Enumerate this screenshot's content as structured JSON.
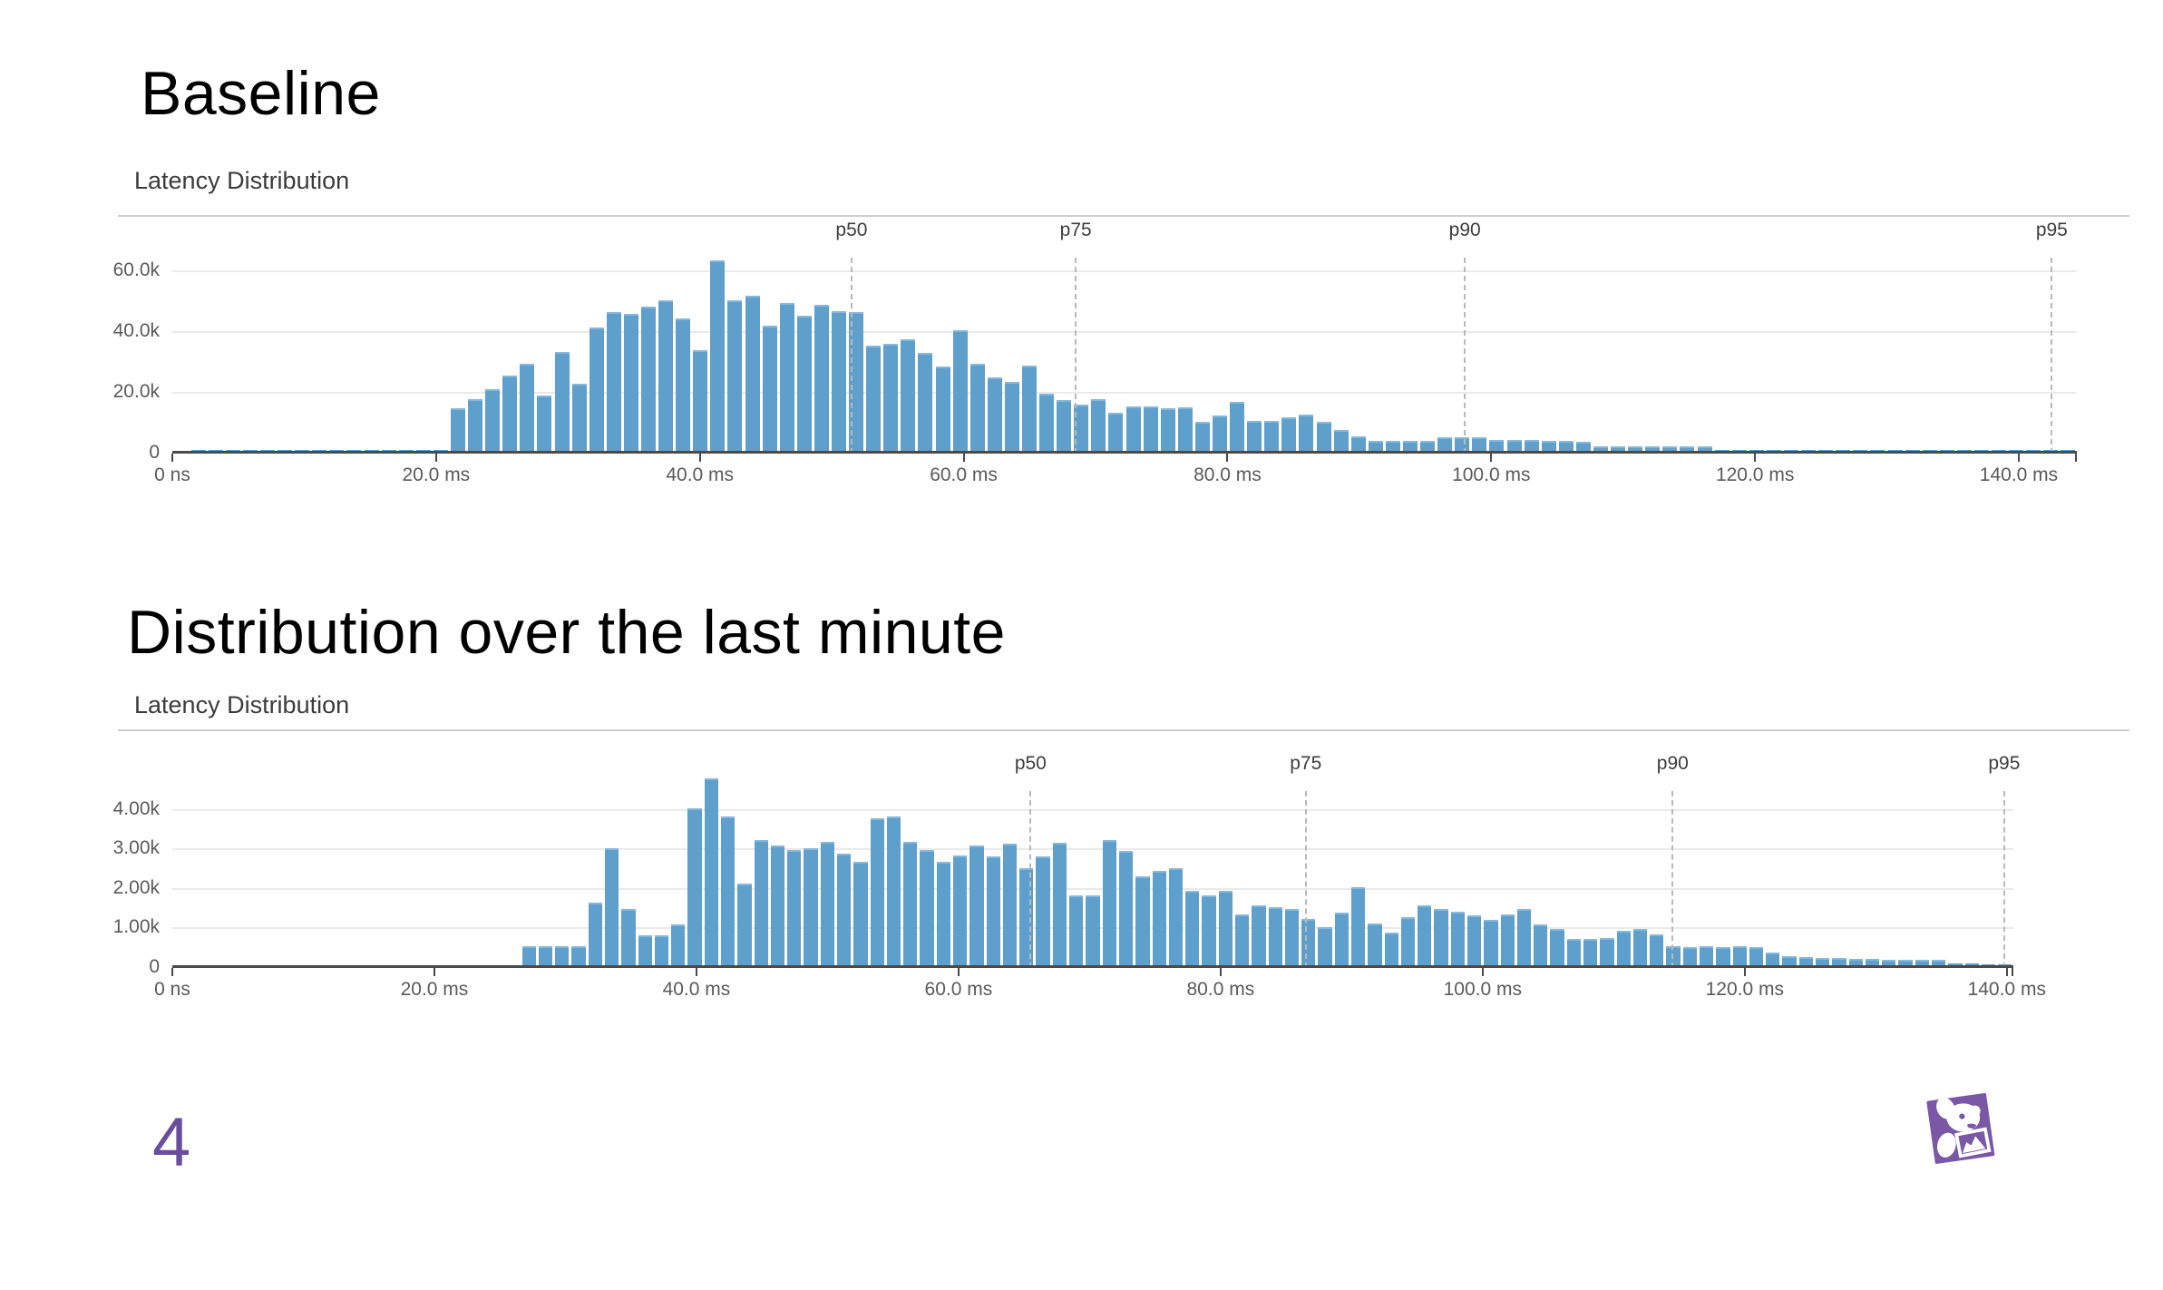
{
  "slide": {
    "page_number": "4"
  },
  "headlines": [
    "Baseline",
    "Distribution over the last minute"
  ],
  "colors": {
    "bar": "#5f9fcc",
    "bar_top_highlight": "#86b8db",
    "grid": "#eaeaea",
    "axis": "#4a4a4a",
    "tick_text": "#5a5a5a",
    "divider": "#cccccc",
    "percentile_line": "#b9b9b9",
    "percentile_text": "#3d3d3d",
    "accent_purple": "#6a4c9f",
    "logo_purple": "#7a58a6"
  },
  "logo": {
    "name": "datadog-logo"
  },
  "chart_data": [
    {
      "type": "bar",
      "title": "Latency Distribution",
      "y_unit": "k",
      "x_axis": {
        "range_ms": [
          0,
          144.4
        ],
        "ticks": [
          {
            "ms": 0,
            "label": "0 ns"
          },
          {
            "ms": 20,
            "label": "20.0 ms"
          },
          {
            "ms": 40,
            "label": "40.0 ms"
          },
          {
            "ms": 60,
            "label": "60.0 ms"
          },
          {
            "ms": 80,
            "label": "80.0 ms"
          },
          {
            "ms": 100,
            "label": "100.0 ms"
          },
          {
            "ms": 120,
            "label": "120.0 ms"
          },
          {
            "ms": 140,
            "label": "140.0 ms"
          }
        ]
      },
      "y_axis": {
        "max_k": 69.4,
        "ticks": [
          {
            "value": 0,
            "label": "0"
          },
          {
            "value": 20,
            "label": "20.0k"
          },
          {
            "value": 40,
            "label": "40.0k"
          },
          {
            "value": 60,
            "label": "60.0k"
          }
        ]
      },
      "percentiles": [
        {
          "label": "p50",
          "ms": 51.5
        },
        {
          "label": "p75",
          "ms": 68.5
        },
        {
          "label": "p90",
          "ms": 98.0
        },
        {
          "label": "p95",
          "ms": 142.5
        }
      ],
      "bin_width_ms": 1.31,
      "values_k": [
        0.6,
        1.1,
        1.2,
        1.1,
        1.2,
        1.2,
        1.1,
        1.2,
        1.2,
        1.1,
        1.2,
        1.2,
        1.1,
        1.2,
        1.2,
        1.2,
        14.5,
        17.5,
        20.5,
        25,
        29,
        18.5,
        33,
        22.5,
        41,
        46,
        45.5,
        48,
        50,
        44,
        33.5,
        63,
        50,
        51.5,
        41.5,
        49,
        45,
        48.5,
        46.5,
        46,
        35,
        35.5,
        37,
        32.5,
        28,
        40,
        29,
        24.5,
        23,
        28.5,
        19,
        17,
        15.5,
        17.5,
        13,
        15,
        15,
        14.5,
        14.7,
        9.8,
        12,
        16.5,
        10.3,
        10.3,
        11.5,
        12.3,
        9.8,
        7.2,
        5,
        3.5,
        3.5,
        3.5,
        3.5,
        4.7,
        4.7,
        4.7,
        3.8,
        3.8,
        3.8,
        3.5,
        3.5,
        3.2,
        1.8,
        1.8,
        1.8,
        1.8,
        1.8,
        1.8,
        1.8,
        1.2,
        1.2,
        1.2,
        1.2,
        1.2,
        1.2,
        1.2,
        1.2,
        1.2,
        1.2,
        1.2,
        1.2,
        1.2,
        1.2,
        1.2,
        1.2,
        1.2,
        1.2,
        1.2,
        1.2,
        1.2
      ]
    },
    {
      "type": "bar",
      "title": "Latency Distribution",
      "y_unit": "k",
      "x_axis": {
        "range_ms": [
          0,
          140.5
        ],
        "ticks": [
          {
            "ms": 0,
            "label": "0 ns"
          },
          {
            "ms": 20,
            "label": "20.0 ms"
          },
          {
            "ms": 40,
            "label": "40.0 ms"
          },
          {
            "ms": 60,
            "label": "60.0 ms"
          },
          {
            "ms": 80,
            "label": "80.0 ms"
          },
          {
            "ms": 100,
            "label": "100.0 ms"
          },
          {
            "ms": 120,
            "label": "120.0 ms"
          },
          {
            "ms": 140,
            "label": "140.0 ms"
          }
        ]
      },
      "y_axis": {
        "max_k": 4.85,
        "ticks": [
          {
            "value": 0,
            "label": "0"
          },
          {
            "value": 1,
            "label": "1.00k"
          },
          {
            "value": 2,
            "label": "2.00k"
          },
          {
            "value": 3,
            "label": "3.00k"
          },
          {
            "value": 4,
            "label": "4.00k"
          }
        ]
      },
      "percentiles": [
        {
          "label": "p50",
          "ms": 65.5
        },
        {
          "label": "p75",
          "ms": 86.5
        },
        {
          "label": "p90",
          "ms": 114.5
        },
        {
          "label": "p95",
          "ms": 139.8
        }
      ],
      "bin_width_ms": 1.27,
      "values_k": [
        0,
        0,
        0,
        0,
        0,
        0,
        0,
        0,
        0,
        0,
        0,
        0,
        0,
        0,
        0,
        0,
        0,
        0,
        0,
        0,
        0,
        0.5,
        0.5,
        0.5,
        0.5,
        1.6,
        3.0,
        1.45,
        0.78,
        0.78,
        1.05,
        4.0,
        4.75,
        3.8,
        2.1,
        3.2,
        3.05,
        2.95,
        3.0,
        3.15,
        2.85,
        2.65,
        3.75,
        3.8,
        3.15,
        2.95,
        2.65,
        2.8,
        3.05,
        2.78,
        3.1,
        2.48,
        2.78,
        3.12,
        1.8,
        1.8,
        3.2,
        2.92,
        2.28,
        2.42,
        2.48,
        1.9,
        1.8,
        1.9,
        1.3,
        1.55,
        1.5,
        1.45,
        1.2,
        1.0,
        1.35,
        2.0,
        1.08,
        0.85,
        1.25,
        1.55,
        1.45,
        1.38,
        1.28,
        1.18,
        1.3,
        1.45,
        1.05,
        0.95,
        0.7,
        0.7,
        0.72,
        0.9,
        0.95,
        0.8,
        0.5,
        0.48,
        0.5,
        0.48,
        0.5,
        0.48,
        0.35,
        0.25,
        0.22,
        0.2,
        0.2,
        0.18,
        0.18,
        0.15,
        0.15,
        0.15,
        0.15,
        0.12,
        0.12,
        0.1,
        0.1
      ]
    }
  ]
}
